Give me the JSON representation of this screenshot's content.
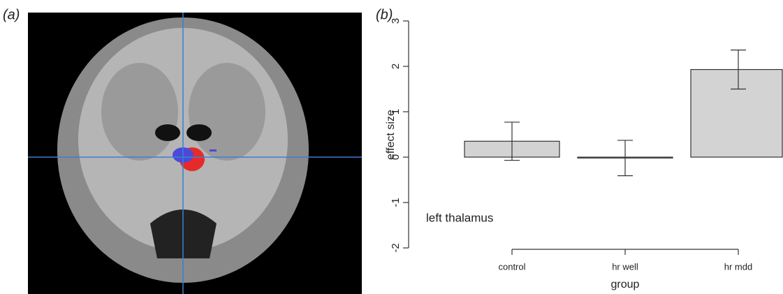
{
  "image_panel": {
    "panel_label": "(a)"
  },
  "chart_data": {
    "type": "bar",
    "panel_label": "(b)",
    "annotation": "left thalamus",
    "x_label": "group",
    "y_label": "effect size",
    "categories": [
      "control",
      "hr well",
      "hr mdd"
    ],
    "values": [
      0.35,
      -0.02,
      1.93
    ],
    "errors": [
      0.42,
      0.39,
      0.43
    ],
    "color": "#d3d3d3",
    "ylim": [
      -2,
      3
    ],
    "yticks": [
      -2,
      -1,
      0,
      1,
      2,
      3
    ]
  }
}
